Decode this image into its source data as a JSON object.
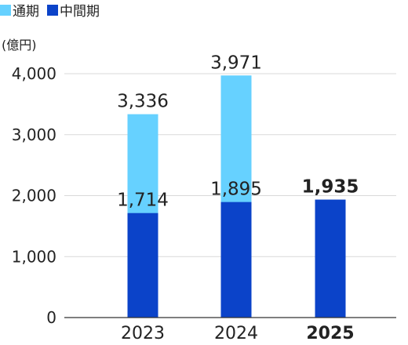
{
  "legend": [
    {
      "label": "通期",
      "color": "#66d1ff"
    },
    {
      "label": "中間期",
      "color": "#0b43c9"
    }
  ],
  "chart_data": {
    "type": "bar",
    "stacking": "overlay",
    "unit_label": "(億円)",
    "categories": [
      "2023",
      "2024",
      "2025"
    ],
    "emphasized_category": "2025",
    "series": [
      {
        "name": "通期",
        "color": "#66d1ff",
        "values": [
          3336,
          3971,
          null
        ],
        "labels": [
          "3,336",
          "3,971",
          ""
        ]
      },
      {
        "name": "中間期",
        "color": "#0b43c9",
        "values": [
          1714,
          1895,
          1935
        ],
        "labels": [
          "1,714",
          "1,895",
          "1,935"
        ]
      }
    ],
    "y_ticks": [
      0,
      1000,
      2000,
      3000,
      4000
    ],
    "y_tick_labels": [
      "0",
      "1,000",
      "2,000",
      "3,000",
      "4,000"
    ],
    "ylim": [
      0,
      4000
    ],
    "grid": true
  }
}
